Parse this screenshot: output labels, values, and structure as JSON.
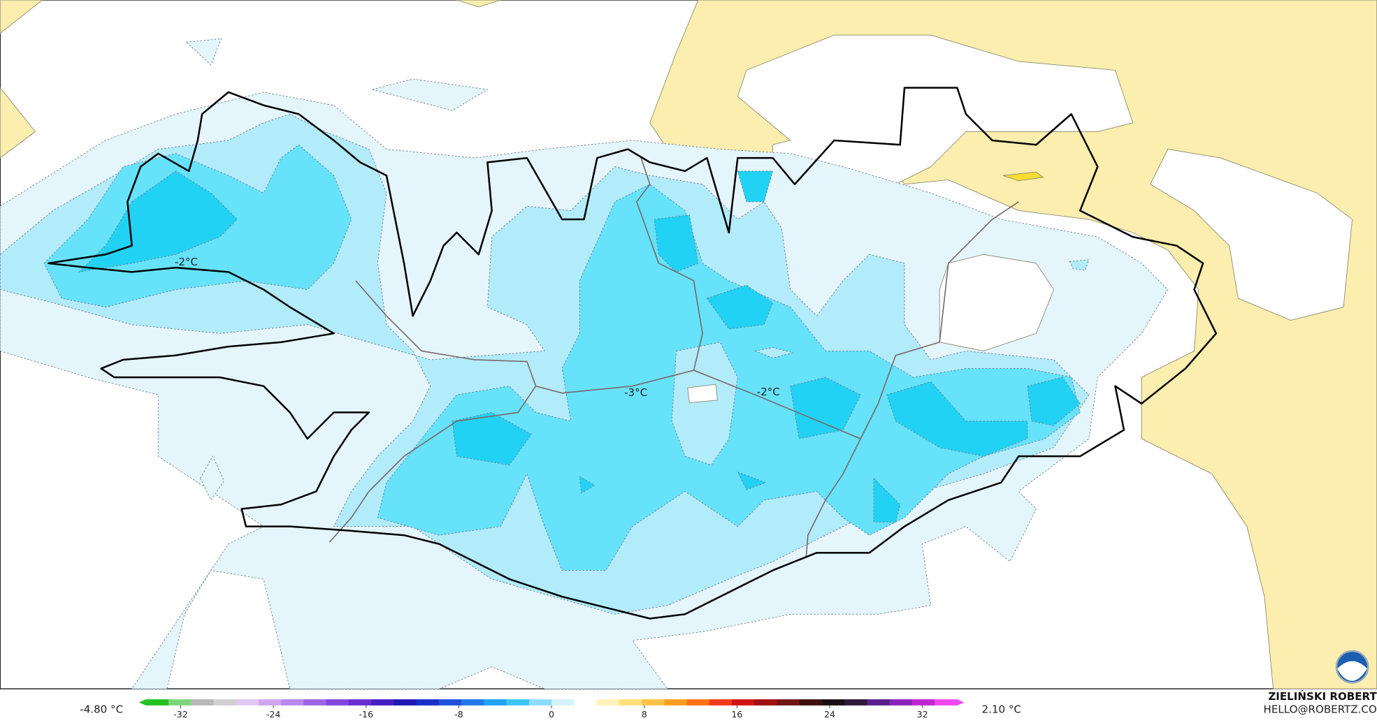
{
  "map": {
    "contour_labels": [
      "-2°C",
      "-3°C",
      "-2°C"
    ]
  },
  "colorbar": {
    "min_label": "-4.80 °C",
    "max_label": "2.10 °C",
    "lim": [
      -35,
      35
    ],
    "ticks": [
      -32,
      -24,
      -16,
      -8,
      0,
      8,
      16,
      24,
      32
    ],
    "colors": [
      "#22c022",
      "#7bd67b",
      "#b8b8b8",
      "#d0d0d0",
      "#e0c8f4",
      "#cfa6f2",
      "#b888ee",
      "#9e66e6",
      "#8046dc",
      "#6630d0",
      "#4420c4",
      "#2218b4",
      "#1830c8",
      "#2050dc",
      "#2078ea",
      "#20a4f2",
      "#3cc4f6",
      "#8adcf8",
      "#d4f2fc",
      "#ffffff",
      "#fff2b8",
      "#ffe07a",
      "#ffc446",
      "#ff9e22",
      "#ff7016",
      "#f03a1c",
      "#d01414",
      "#a01010",
      "#701414",
      "#401010",
      "#181010",
      "#301838",
      "#5a1e8c",
      "#8a22b8",
      "#c026d0",
      "#f048f0"
    ]
  },
  "credit": {
    "author": "ZIELIŃSKI ROBERT",
    "email": "HELLO@ROBERTZ.CO"
  }
}
